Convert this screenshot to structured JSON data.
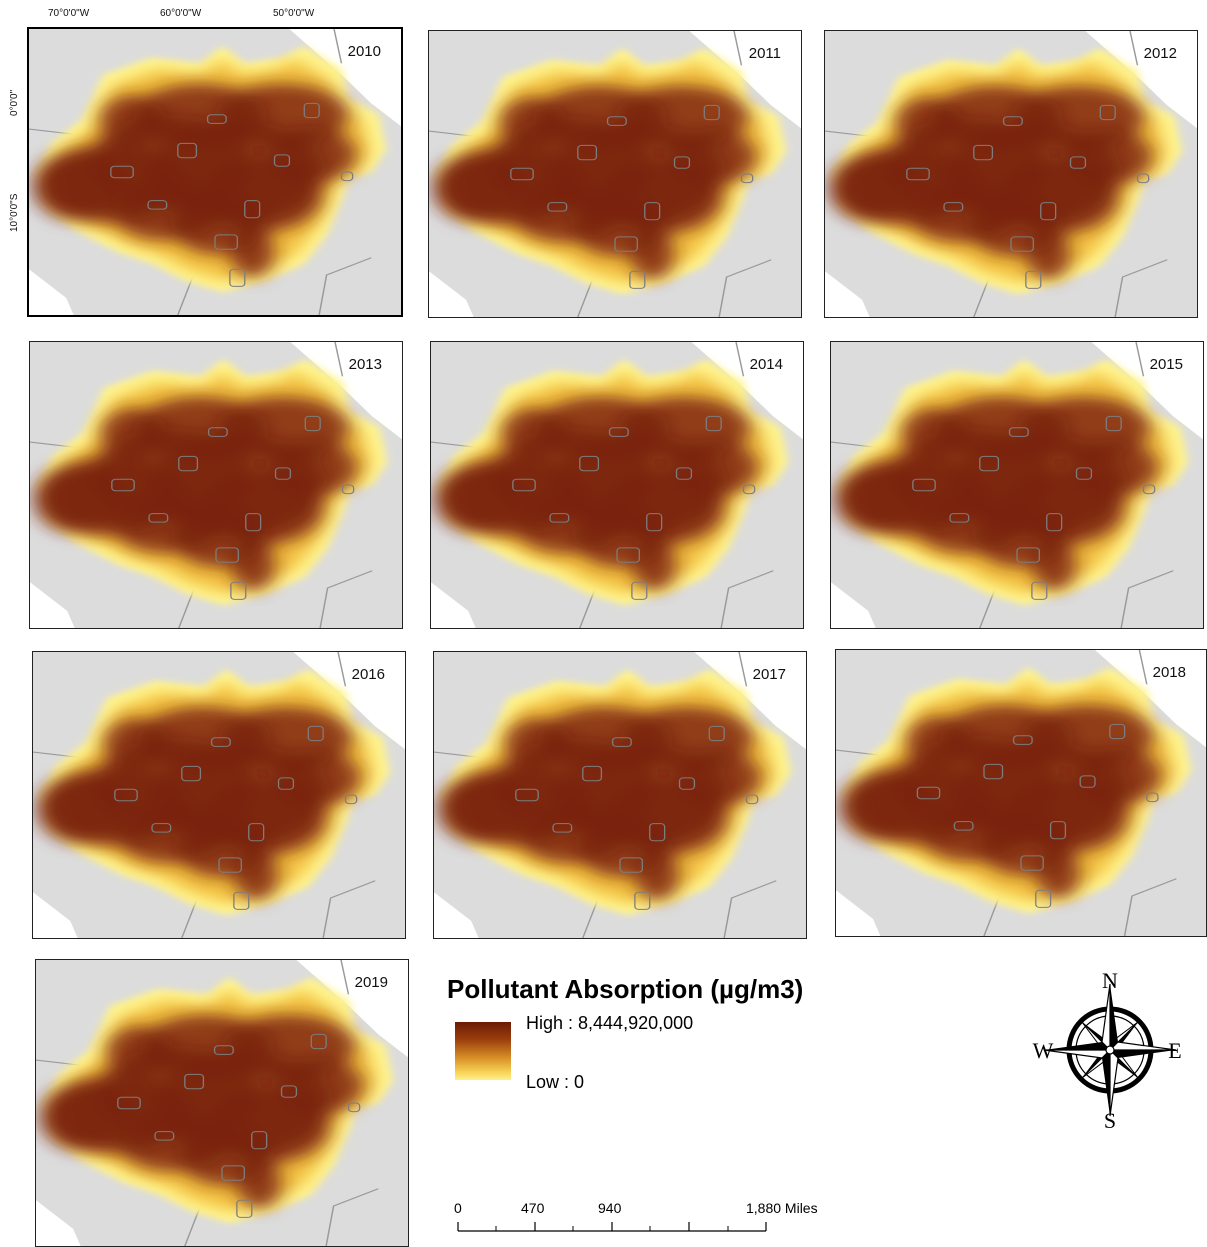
{
  "panels": [
    {
      "year": "2010"
    },
    {
      "year": "2011"
    },
    {
      "year": "2012"
    },
    {
      "year": "2013"
    },
    {
      "year": "2014"
    },
    {
      "year": "2015"
    },
    {
      "year": "2016"
    },
    {
      "year": "2017"
    },
    {
      "year": "2018"
    },
    {
      "year": "2019"
    }
  ],
  "graticule": {
    "lon_labels": [
      "70°0'0\"W",
      "60°0'0\"W",
      "50°0'0\"W"
    ],
    "lat_labels": [
      "0°0'0\"",
      "10°0'0\"S"
    ]
  },
  "legend": {
    "title": "Pollutant Absorption (µg/m3)",
    "high": "High : 8,444,920,000",
    "low": "Low : 0",
    "colors": {
      "high": "#6b1a06",
      "mid": "#d58a24",
      "low": "#fff08a"
    }
  },
  "scalebar": {
    "labels": [
      "0",
      "470",
      "940",
      "1,880 Miles"
    ]
  },
  "compass": {
    "n": "N",
    "s": "S",
    "e": "E",
    "w": "W"
  }
}
